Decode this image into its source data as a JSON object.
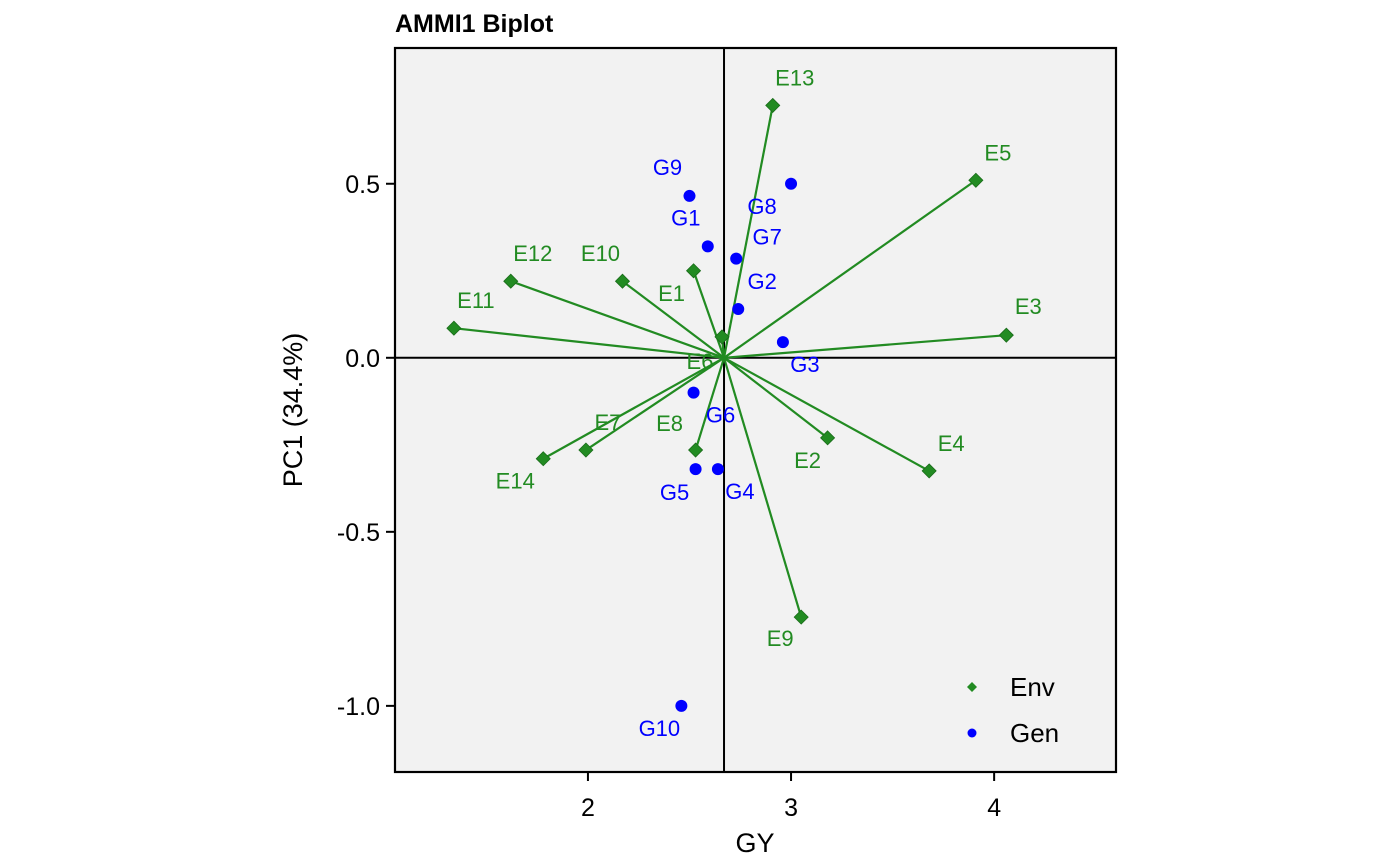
{
  "chart_data": {
    "type": "scatter",
    "title": "AMMI1 Biplot",
    "xlabel": "GY",
    "ylabel": "PC1 (34.4%)",
    "xlim": [
      1.05,
      4.6
    ],
    "ylim": [
      -1.19,
      0.89
    ],
    "xticks": [
      2,
      3,
      4
    ],
    "yticks": [
      0.5,
      0.0,
      -0.5,
      -1.0
    ],
    "ytick_labels": [
      "0.5",
      "0.0",
      "-0.5",
      "-1.0"
    ],
    "reference_lines": {
      "x": 2.67,
      "y": 0.0
    },
    "grid": false,
    "legend_position": "bottom-right",
    "colors": {
      "env": "#228B22",
      "gen": "#0000FF",
      "panel": "#F2F2F2"
    },
    "series": [
      {
        "name": "Env",
        "marker": "diamond",
        "vectors_from_origin": true,
        "points": [
          {
            "label": "E1",
            "x": 2.52,
            "y": 0.25
          },
          {
            "label": "E2",
            "x": 3.18,
            "y": -0.23
          },
          {
            "label": "E3",
            "x": 4.06,
            "y": 0.065
          },
          {
            "label": "E4",
            "x": 3.68,
            "y": -0.325
          },
          {
            "label": "E5",
            "x": 3.91,
            "y": 0.51
          },
          {
            "label": "E6",
            "x": 2.66,
            "y": 0.06
          },
          {
            "label": "E7",
            "x": 1.99,
            "y": -0.265
          },
          {
            "label": "E8",
            "x": 2.53,
            "y": -0.265
          },
          {
            "label": "E9",
            "x": 3.05,
            "y": -0.745
          },
          {
            "label": "E10",
            "x": 2.17,
            "y": 0.22
          },
          {
            "label": "E11",
            "x": 1.34,
            "y": 0.085
          },
          {
            "label": "E12",
            "x": 1.62,
            "y": 0.22
          },
          {
            "label": "E13",
            "x": 2.91,
            "y": 0.725
          },
          {
            "label": "E14",
            "x": 1.78,
            "y": -0.29
          }
        ]
      },
      {
        "name": "Gen",
        "marker": "circle",
        "vectors_from_origin": false,
        "points": [
          {
            "label": "G1",
            "x": 2.59,
            "y": 0.32
          },
          {
            "label": "G2",
            "x": 2.74,
            "y": 0.14
          },
          {
            "label": "G3",
            "x": 2.96,
            "y": 0.045
          },
          {
            "label": "G4",
            "x": 2.64,
            "y": -0.32
          },
          {
            "label": "G5",
            "x": 2.53,
            "y": -0.32
          },
          {
            "label": "G6",
            "x": 2.52,
            "y": -0.1
          },
          {
            "label": "G7",
            "x": 2.73,
            "y": 0.285
          },
          {
            "label": "G8",
            "x": 3.0,
            "y": 0.5
          },
          {
            "label": "G9",
            "x": 2.5,
            "y": 0.465
          },
          {
            "label": "G10",
            "x": 2.46,
            "y": -1.0
          }
        ]
      }
    ]
  }
}
